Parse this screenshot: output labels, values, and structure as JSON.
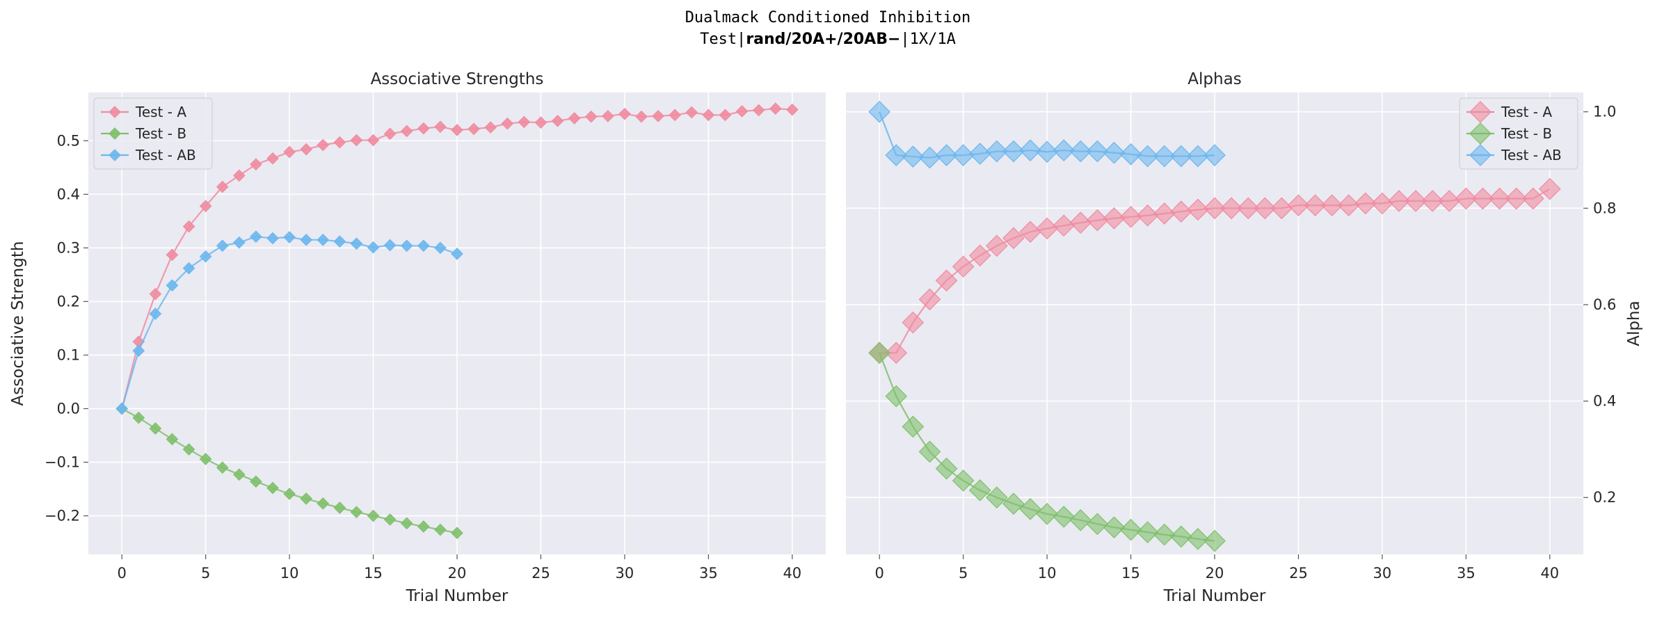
{
  "figure": {
    "title_line1": "Dualmack Conditioned Inhibition",
    "title_line2_prefix": "Test|",
    "title_line2_bold": "rand/20A+/20AB−",
    "title_line2_suffix": "|1X/1A"
  },
  "colors": {
    "background": "#eaeaf2",
    "grid": "#ffffff",
    "A": "#f08ca0",
    "B": "#7fc06b",
    "AB": "#6cb7ee"
  },
  "chart_data": [
    {
      "type": "line",
      "title": "Associative Strengths",
      "xlabel": "Trial Number",
      "ylabel": "Associative Strength",
      "xlim": [
        -2,
        42
      ],
      "ylim": [
        -0.272,
        0.59
      ],
      "xticks": [
        0,
        5,
        10,
        15,
        20,
        25,
        30,
        35,
        40
      ],
      "yticks": [
        -0.2,
        -0.1,
        0.0,
        0.1,
        0.2,
        0.3,
        0.4,
        0.5
      ],
      "ytick_labels": [
        "−0.2",
        "−0.1",
        "0.0",
        "0.1",
        "0.2",
        "0.3",
        "0.4",
        "0.5"
      ],
      "grid": true,
      "legend": "top-left",
      "series": [
        {
          "name": "Test - A",
          "color_key": "A",
          "x": [
            0,
            1,
            2,
            3,
            4,
            5,
            6,
            7,
            8,
            9,
            10,
            11,
            12,
            13,
            14,
            15,
            16,
            17,
            18,
            19,
            20,
            21,
            22,
            23,
            24,
            25,
            26,
            27,
            28,
            29,
            30,
            31,
            32,
            33,
            34,
            35,
            36,
            37,
            38,
            39,
            40
          ],
          "values": [
            0.0,
            0.125,
            0.214,
            0.287,
            0.34,
            0.378,
            0.414,
            0.435,
            0.456,
            0.467,
            0.479,
            0.484,
            0.492,
            0.497,
            0.501,
            0.501,
            0.513,
            0.518,
            0.523,
            0.526,
            0.52,
            0.522,
            0.525,
            0.532,
            0.535,
            0.534,
            0.537,
            0.542,
            0.545,
            0.546,
            0.55,
            0.545,
            0.546,
            0.548,
            0.553,
            0.548,
            0.548,
            0.555,
            0.557,
            0.56,
            0.558
          ]
        },
        {
          "name": "Test - B",
          "color_key": "B",
          "x": [
            0,
            1,
            2,
            3,
            4,
            5,
            6,
            7,
            8,
            9,
            10,
            11,
            12,
            13,
            14,
            15,
            16,
            17,
            18,
            19,
            20
          ],
          "values": [
            0.0,
            -0.017,
            -0.037,
            -0.057,
            -0.076,
            -0.094,
            -0.11,
            -0.123,
            -0.136,
            -0.148,
            -0.159,
            -0.168,
            -0.177,
            -0.185,
            -0.193,
            -0.2,
            -0.207,
            -0.214,
            -0.22,
            -0.226,
            -0.232
          ]
        },
        {
          "name": "Test - AB",
          "color_key": "AB",
          "x": [
            0,
            1,
            2,
            3,
            4,
            5,
            6,
            7,
            8,
            9,
            10,
            11,
            12,
            13,
            14,
            15,
            16,
            17,
            18,
            19,
            20
          ],
          "values": [
            0.0,
            0.108,
            0.177,
            0.23,
            0.262,
            0.284,
            0.304,
            0.31,
            0.321,
            0.318,
            0.32,
            0.315,
            0.315,
            0.312,
            0.308,
            0.301,
            0.305,
            0.304,
            0.304,
            0.3,
            0.289
          ]
        }
      ]
    },
    {
      "type": "line",
      "title": "Alphas",
      "xlabel": "Trial Number",
      "ylabel": "Alpha",
      "y_axis_side": "right",
      "xlim": [
        -2,
        42
      ],
      "ylim": [
        0.082,
        1.04
      ],
      "xticks": [
        0,
        5,
        10,
        15,
        20,
        25,
        30,
        35,
        40
      ],
      "yticks": [
        0.2,
        0.4,
        0.6,
        0.8,
        1.0
      ],
      "ytick_labels": [
        "0.2",
        "0.4",
        "0.6",
        "0.8",
        "1.0"
      ],
      "grid": true,
      "legend": "top-right",
      "series": [
        {
          "name": "Test - A",
          "color_key": "A",
          "x": [
            0,
            1,
            2,
            3,
            4,
            5,
            6,
            7,
            8,
            9,
            10,
            11,
            12,
            13,
            14,
            15,
            16,
            17,
            18,
            19,
            20,
            21,
            22,
            23,
            24,
            25,
            26,
            27,
            28,
            29,
            30,
            31,
            32,
            33,
            34,
            35,
            36,
            37,
            38,
            39,
            40
          ],
          "values": [
            0.5,
            0.5,
            0.563,
            0.611,
            0.65,
            0.679,
            0.702,
            0.722,
            0.738,
            0.751,
            0.758,
            0.764,
            0.77,
            0.775,
            0.779,
            0.782,
            0.785,
            0.789,
            0.793,
            0.797,
            0.8,
            0.8,
            0.8,
            0.8,
            0.8,
            0.806,
            0.806,
            0.806,
            0.806,
            0.81,
            0.81,
            0.815,
            0.815,
            0.815,
            0.815,
            0.82,
            0.82,
            0.82,
            0.82,
            0.82,
            0.84
          ]
        },
        {
          "name": "Test - B",
          "color_key": "B",
          "x": [
            0,
            1,
            2,
            3,
            4,
            5,
            6,
            7,
            8,
            9,
            10,
            11,
            12,
            13,
            14,
            15,
            16,
            17,
            18,
            19,
            20
          ],
          "values": [
            0.5,
            0.41,
            0.347,
            0.295,
            0.26,
            0.235,
            0.215,
            0.2,
            0.187,
            0.176,
            0.166,
            0.16,
            0.153,
            0.145,
            0.138,
            0.133,
            0.128,
            0.123,
            0.119,
            0.114,
            0.11
          ]
        },
        {
          "name": "Test - AB",
          "color_key": "AB",
          "x": [
            0,
            1,
            2,
            3,
            4,
            5,
            6,
            7,
            8,
            9,
            10,
            11,
            12,
            13,
            14,
            15,
            16,
            17,
            18,
            19,
            20
          ],
          "values": [
            1.0,
            0.91,
            0.907,
            0.905,
            0.91,
            0.91,
            0.913,
            0.918,
            0.918,
            0.92,
            0.917,
            0.92,
            0.918,
            0.918,
            0.915,
            0.912,
            0.908,
            0.908,
            0.908,
            0.908,
            0.91
          ]
        }
      ]
    }
  ]
}
